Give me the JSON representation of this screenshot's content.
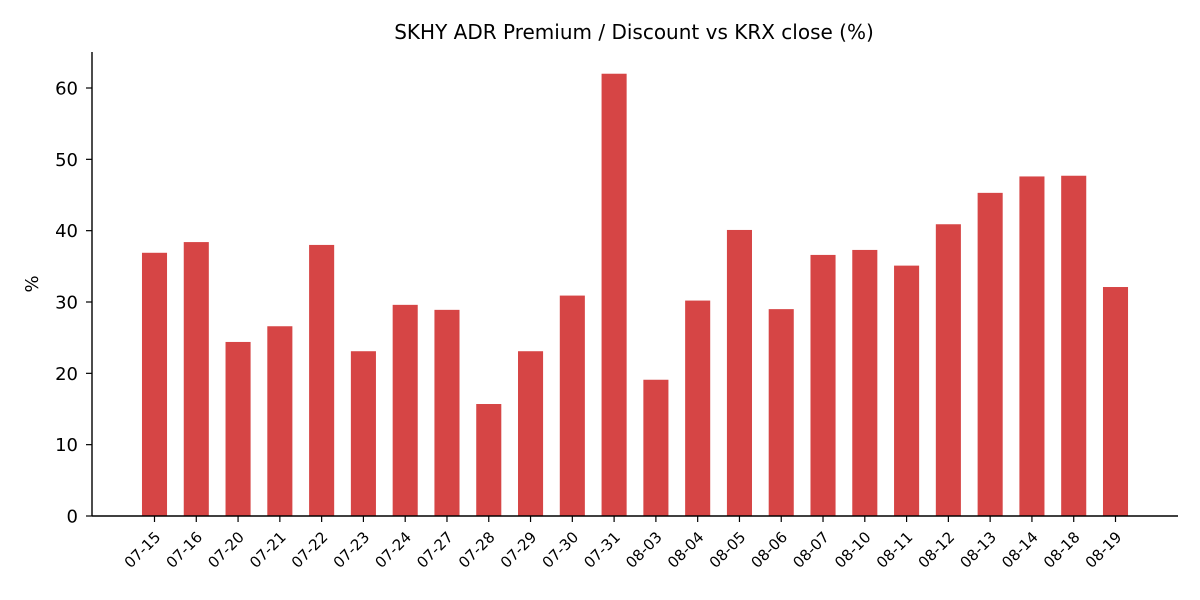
{
  "chart_data": {
    "type": "bar",
    "title": "SKHY ADR Premium / Discount vs KRX close (%)",
    "xlabel": "",
    "ylabel": "%",
    "ylim": [
      0,
      65
    ],
    "yticks": [
      0,
      10,
      20,
      30,
      40,
      50,
      60
    ],
    "grid": false,
    "bar_color": "#d64545",
    "categories": [
      "07-15",
      "07-16",
      "07-20",
      "07-21",
      "07-22",
      "07-23",
      "07-24",
      "07-27",
      "07-28",
      "07-29",
      "07-30",
      "07-31",
      "08-03",
      "08-04",
      "08-05",
      "08-06",
      "08-07",
      "08-10",
      "08-11",
      "08-12",
      "08-13",
      "08-14",
      "08-18",
      "08-19"
    ],
    "values": [
      36.9,
      38.4,
      24.4,
      26.6,
      38.0,
      23.1,
      29.6,
      28.9,
      15.7,
      23.1,
      30.9,
      62.0,
      19.1,
      30.2,
      40.1,
      29.0,
      36.6,
      37.3,
      35.1,
      40.9,
      45.3,
      47.6,
      47.7,
      32.1
    ]
  }
}
